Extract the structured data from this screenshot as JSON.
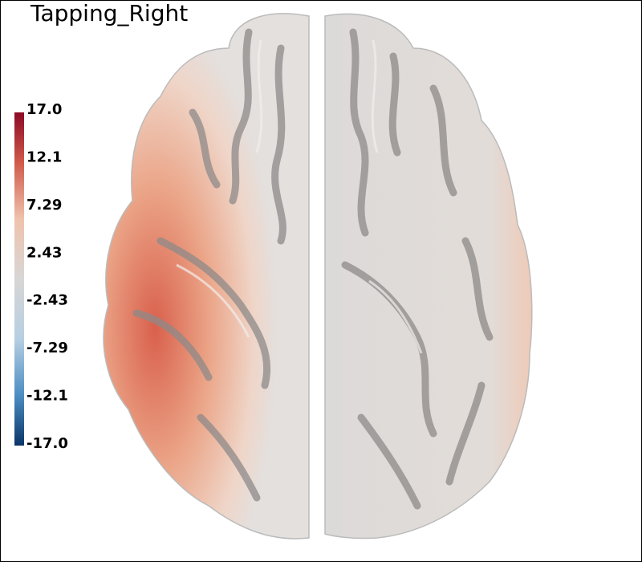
{
  "title": "Tapping_Right",
  "colorbar": {
    "labels": [
      "17.0",
      "12.1",
      "7.29",
      "2.43",
      "-2.43",
      "-7.29",
      "-12.1",
      "-17.0"
    ]
  }
}
